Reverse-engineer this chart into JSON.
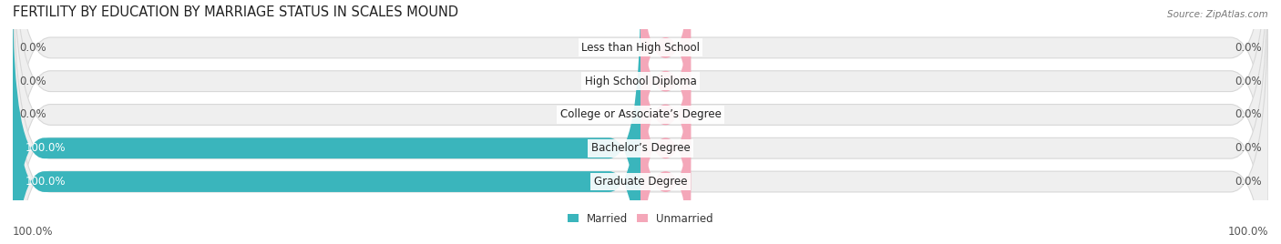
{
  "title": "FERTILITY BY EDUCATION BY MARRIAGE STATUS IN SCALES MOUND",
  "source": "Source: ZipAtlas.com",
  "categories": [
    "Less than High School",
    "High School Diploma",
    "College or Associate’s Degree",
    "Bachelor’s Degree",
    "Graduate Degree"
  ],
  "married_values": [
    0.0,
    0.0,
    0.0,
    100.0,
    100.0
  ],
  "unmarried_values": [
    0.0,
    0.0,
    0.0,
    0.0,
    0.0
  ],
  "married_color": "#3ab5bc",
  "unmarried_color": "#f4a7b9",
  "bar_bg_color": "#efefef",
  "bar_bg_edge_color": "#d8d8d8",
  "bar_height": 0.62,
  "title_fontsize": 10.5,
  "label_fontsize": 8.5,
  "axis_label_fontsize": 8.5,
  "figsize": [
    14.06,
    2.68
  ],
  "dpi": 100,
  "xlim": [
    -100,
    100
  ],
  "x_left_tick_label": "100.0%",
  "x_right_tick_label": "100.0%",
  "legend_labels": [
    "Married",
    "Unmarried"
  ],
  "background_color": "#ffffff",
  "row_bg_colors": [
    "#f5f5f5",
    "#ececec",
    "#f5f5f5",
    "#ececec",
    "#f5f5f5"
  ]
}
